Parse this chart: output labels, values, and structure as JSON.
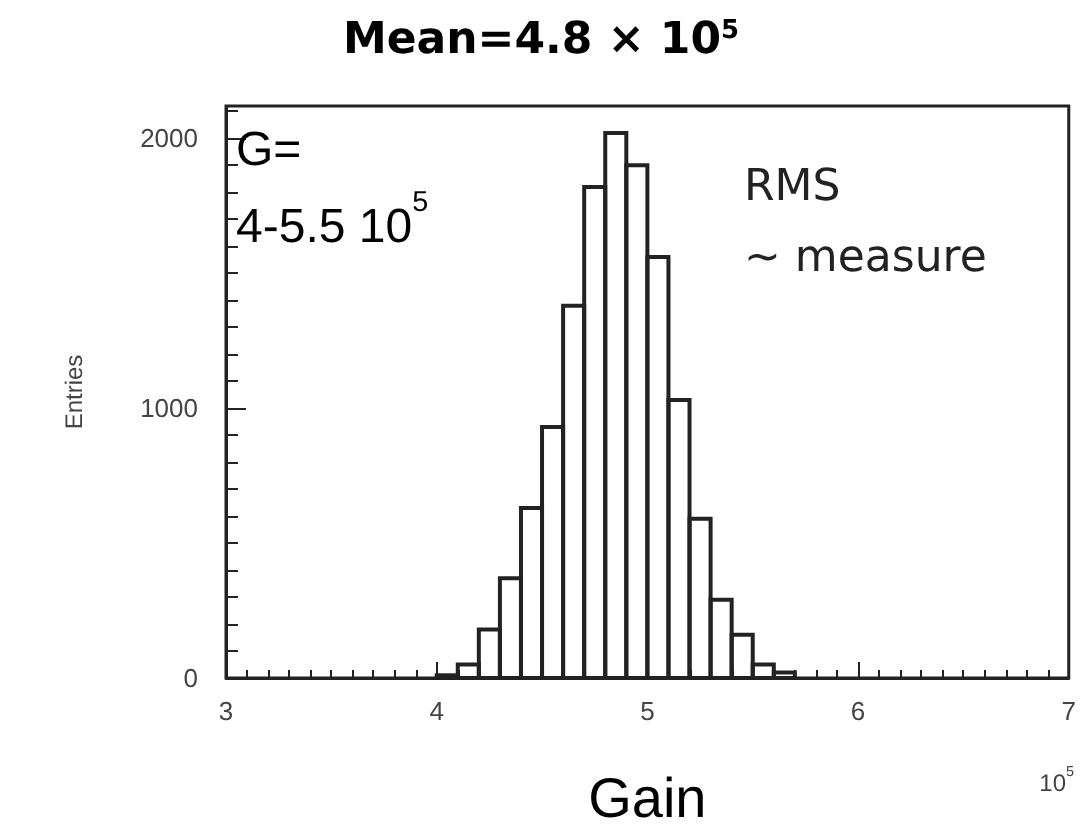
{
  "chart_data": {
    "type": "histogram",
    "title": "Mean=4.8 × 10$^{5}$",
    "xlabel": "Gain",
    "ylabel": "Entries",
    "annotations": [
      "G=\n4-5.5 10$^{5}$",
      "RMS\n~ measure",
      "10$^{5}$"
    ],
    "bins": [
      4.0,
      4.1,
      4.2,
      4.3,
      4.4,
      4.5,
      4.6,
      4.7,
      4.8,
      4.9,
      5.0,
      5.1,
      5.2,
      5.3,
      5.4,
      5.5,
      5.6,
      5.7
    ],
    "values": [
      10,
      50,
      180,
      370,
      630,
      930,
      1380,
      1820,
      2020,
      1900,
      1560,
      1030,
      590,
      290,
      160,
      50,
      20
    ],
    "color": "#222222",
    "xlim": [
      3,
      7
    ],
    "xticks": [
      3,
      4,
      5,
      6,
      7
    ],
    "ylim": [
      0,
      2120
    ],
    "yticks": [
      0,
      1000,
      2000
    ],
    "grid": false
  }
}
